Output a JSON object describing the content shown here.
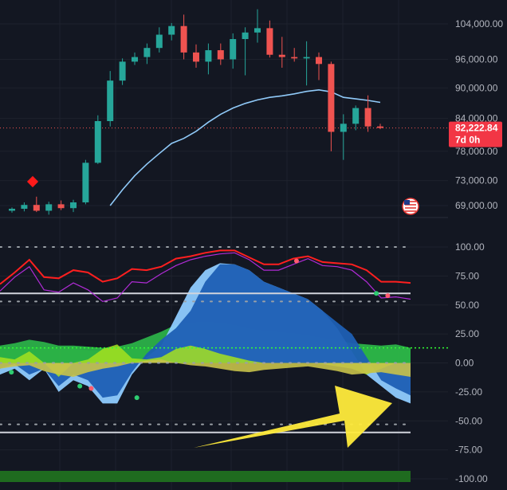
{
  "colors": {
    "background": "#131722",
    "grid": "#1e222d",
    "bull": "#26a69a",
    "bear": "#ef5350",
    "ma": "#90caf9",
    "price_tag": "#f23645",
    "red_line": "#ff1f1f",
    "purple_line": "#b02bd6",
    "white_line": "#d1d4dc",
    "blue_wave": "#1e5fb4",
    "light_blue_wave": "#8ecbff",
    "green_wave": "#2eb84a",
    "lime_wave": "#a6e21f",
    "yellow_wave": "#c8c24a",
    "dark_green_band": "#1f7a1f",
    "bottom_band": "#1f6b1f",
    "arrow": "#ffeb3b",
    "marker_red": "#ff1a1a",
    "dot_green": "#2ecc71",
    "dot_red": "#ff5b6e",
    "dotted_green": "#33ff33"
  },
  "price_axis": {
    "ticks": [
      "104,000.00",
      "96,000.00",
      "90,000.00",
      "84,000.00",
      "78,000.00",
      "73,000.00",
      "69,000.00"
    ],
    "tick_values": [
      104000,
      96000,
      90000,
      84000,
      78000,
      73000,
      69000
    ],
    "last_price": "82,222.84",
    "countdown": "7d 0h",
    "last_value": 82222.84
  },
  "osc_axis": {
    "ticks": [
      "100.00",
      "75.00",
      "50.00",
      "25.00",
      "0.00",
      "-25.00",
      "-50.00",
      "-75.00",
      "-100.00"
    ],
    "tick_values": [
      100,
      75,
      50,
      25,
      0,
      -25,
      -50,
      -75,
      -100
    ]
  },
  "icons": {
    "marker": "red-diamond-marker-icon",
    "flag": "us-flag-icon",
    "arrow": "yellow-arrow-annotation"
  },
  "chart_data": [
    {
      "type": "candlestick",
      "title": "",
      "xlabel": "",
      "ylabel": "",
      "ylim": [
        67000,
        110000
      ],
      "candles": [
        {
          "o": 68200,
          "h": 68700,
          "l": 67900,
          "c": 68500
        },
        {
          "o": 68500,
          "h": 69500,
          "l": 68100,
          "c": 69100
        },
        {
          "o": 69100,
          "h": 70400,
          "l": 68000,
          "c": 68200
        },
        {
          "o": 68200,
          "h": 69600,
          "l": 67600,
          "c": 69200
        },
        {
          "o": 69200,
          "h": 69800,
          "l": 68300,
          "c": 68600
        },
        {
          "o": 68600,
          "h": 69900,
          "l": 68000,
          "c": 69500
        },
        {
          "o": 69500,
          "h": 76500,
          "l": 69200,
          "c": 76000
        },
        {
          "o": 76000,
          "h": 84600,
          "l": 75800,
          "c": 83500
        },
        {
          "o": 83500,
          "h": 93500,
          "l": 82500,
          "c": 91500
        },
        {
          "o": 91500,
          "h": 96200,
          "l": 90600,
          "c": 95500
        },
        {
          "o": 95500,
          "h": 97500,
          "l": 94800,
          "c": 96500
        },
        {
          "o": 96500,
          "h": 99500,
          "l": 95000,
          "c": 98500
        },
        {
          "o": 98500,
          "h": 103200,
          "l": 97500,
          "c": 101500
        },
        {
          "o": 101500,
          "h": 104200,
          "l": 100200,
          "c": 103500
        },
        {
          "o": 103500,
          "h": 106200,
          "l": 96000,
          "c": 97500
        },
        {
          "o": 97500,
          "h": 99300,
          "l": 94200,
          "c": 95500
        },
        {
          "o": 95500,
          "h": 99500,
          "l": 92800,
          "c": 98000
        },
        {
          "o": 98000,
          "h": 99500,
          "l": 94800,
          "c": 96000
        },
        {
          "o": 96000,
          "h": 101800,
          "l": 94000,
          "c": 100500
        },
        {
          "o": 100500,
          "h": 103200,
          "l": 92600,
          "c": 102000
        },
        {
          "o": 102000,
          "h": 107500,
          "l": 99700,
          "c": 103000
        },
        {
          "o": 103000,
          "h": 104800,
          "l": 96400,
          "c": 97000
        },
        {
          "o": 97000,
          "h": 101000,
          "l": 94200,
          "c": 96500
        },
        {
          "o": 96500,
          "h": 98500,
          "l": 95500,
          "c": 96200
        },
        {
          "o": 96200,
          "h": 100000,
          "l": 90500,
          "c": 96500
        },
        {
          "o": 96500,
          "h": 97500,
          "l": 91600,
          "c": 95000
        },
        {
          "o": 95000,
          "h": 95500,
          "l": 78000,
          "c": 81500
        },
        {
          "o": 81500,
          "h": 84800,
          "l": 76500,
          "c": 83000
        },
        {
          "o": 83000,
          "h": 86500,
          "l": 81800,
          "c": 86000
        },
        {
          "o": 86000,
          "h": 88500,
          "l": 81500,
          "c": 82500
        },
        {
          "o": 82500,
          "h": 83000,
          "l": 82000,
          "c": 82223
        }
      ],
      "moving_average": [
        null,
        null,
        null,
        null,
        null,
        null,
        null,
        null,
        69000,
        71500,
        73800,
        75800,
        77600,
        79400,
        80300,
        81600,
        83300,
        84800,
        86000,
        86900,
        87600,
        88100,
        88400,
        88800,
        89300,
        89600,
        89200,
        88100,
        87800,
        87500,
        87100
      ]
    },
    {
      "type": "area",
      "title": "",
      "xlabel": "",
      "ylabel": "",
      "ylim": [
        -100,
        100
      ],
      "reference_lines": [
        60,
        -60
      ],
      "dotted_levels": [
        100,
        53,
        0,
        -53
      ],
      "series": [
        {
          "key": "red_line",
          "values": [
            68,
            78,
            89,
            74,
            73,
            80,
            78,
            70,
            73,
            81,
            80,
            83,
            90,
            92,
            95,
            97,
            97,
            91,
            85,
            85,
            90,
            92,
            87,
            86,
            85,
            80,
            70,
            70,
            69
          ]
        },
        {
          "key": "purple_line",
          "values": [
            62,
            74,
            83,
            63,
            61,
            69,
            63,
            53,
            56,
            70,
            69,
            77,
            84,
            89,
            92,
            94,
            95,
            89,
            80,
            80,
            85,
            90,
            84,
            83,
            80,
            70,
            56,
            57,
            55
          ]
        },
        {
          "key": "light_blue_wave",
          "values": [
            -10,
            -5,
            -15,
            -5,
            -25,
            -15,
            -20,
            -35,
            -35,
            -10,
            5,
            15,
            40,
            65,
            80,
            86,
            85,
            80,
            70,
            65,
            60,
            55,
            45,
            30,
            10,
            -10,
            -20,
            -30,
            -35
          ]
        },
        {
          "key": "blue_wave",
          "values": [
            -5,
            -1,
            -10,
            -5,
            -20,
            -10,
            -15,
            -30,
            -28,
            -8,
            8,
            20,
            30,
            45,
            70,
            85,
            85,
            80,
            70,
            65,
            60,
            55,
            45,
            35,
            25,
            5,
            -15,
            -22,
            -28
          ]
        },
        {
          "key": "green_wave",
          "values": [
            15,
            17,
            20,
            18,
            15,
            15,
            14,
            13,
            14,
            17,
            22,
            27,
            33,
            35,
            36,
            35,
            33,
            30,
            28,
            27,
            26,
            24,
            22,
            20,
            17,
            16,
            15,
            16,
            13
          ]
        },
        {
          "key": "dark_green_band",
          "values": [
            12,
            13,
            14,
            13,
            12,
            12,
            11,
            11,
            11,
            12,
            13,
            14,
            15,
            15,
            15,
            15,
            14,
            14,
            13,
            13,
            13,
            13,
            12,
            12,
            12,
            12,
            12,
            12,
            12
          ]
        },
        {
          "key": "lime_wave",
          "values": [
            5,
            3,
            10,
            0,
            -12,
            0,
            3,
            12,
            16,
            4,
            3,
            5,
            12,
            15,
            12,
            8,
            5,
            2,
            0,
            0,
            0,
            0,
            -1,
            -3,
            -5,
            -10,
            -5,
            0,
            0
          ]
        },
        {
          "key": "yellow_wave",
          "values": [
            -5,
            -3,
            -2,
            -7,
            -10,
            -12,
            -8,
            -5,
            -3,
            0,
            2,
            3,
            0,
            -2,
            -3,
            -5,
            -7,
            -8,
            -6,
            -5,
            -4,
            -3,
            -5,
            -7,
            -10,
            -9,
            -8,
            -10,
            -12
          ]
        }
      ],
      "dots": [
        {
          "i": 1,
          "v": -8,
          "color": "green"
        },
        {
          "i": 7,
          "v": -20,
          "color": "green"
        },
        {
          "i": 8,
          "v": -22,
          "color": "red"
        },
        {
          "i": 12,
          "v": -30,
          "color": "green"
        },
        {
          "i": 26,
          "v": 88,
          "color": "red"
        },
        {
          "i": 33,
          "v": 60,
          "color": "green"
        },
        {
          "i": 34,
          "v": 58,
          "color": "red"
        }
      ]
    }
  ]
}
